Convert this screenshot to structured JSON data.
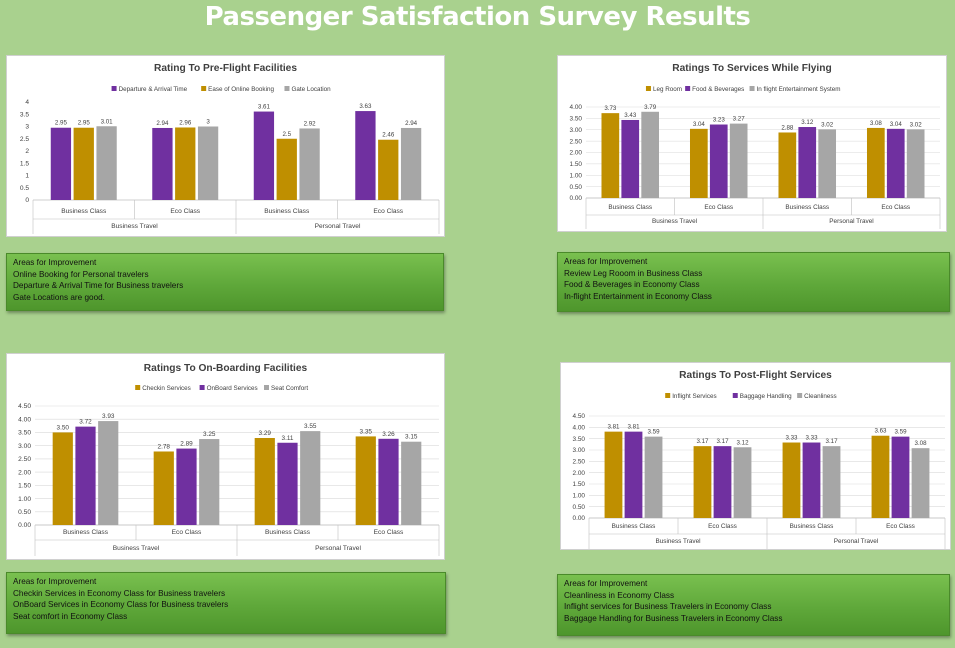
{
  "page_title": "Passenger Satisfaction Survey Results",
  "colors": {
    "purple": "#7030a0",
    "gold": "#bf8f00",
    "gray": "#a6a6a6",
    "background": "#a9d18e"
  },
  "chart_data": [
    {
      "type": "bar",
      "title": "Rating To Pre-Flight Facilities",
      "legend_position": "top",
      "value_format": "raw",
      "groups": [
        "Business Travel",
        "Personal Travel"
      ],
      "categories": [
        "Business Class",
        "Eco Class",
        "Business Class",
        "Eco Class"
      ],
      "series": [
        {
          "name": "Departure & Arrival Time",
          "color": "#7030a0",
          "values": [
            2.95,
            2.94,
            3.61,
            3.63
          ],
          "labels": [
            "2.95",
            "2.94",
            "3.61",
            "3.63"
          ]
        },
        {
          "name": "Ease of Online Booking",
          "color": "#bf8f00",
          "values": [
            2.95,
            2.96,
            2.5,
            2.46
          ],
          "labels": [
            "2.95",
            "2.96",
            "2.5",
            "2.46"
          ]
        },
        {
          "name": "Gate Location",
          "color": "#a6a6a6",
          "values": [
            3.01,
            3,
            2.92,
            2.94
          ],
          "labels": [
            "3.01",
            "3",
            "2.92",
            "2.94"
          ]
        }
      ],
      "ylim": [
        0,
        4
      ],
      "yticks": [
        "0",
        "0.5",
        "1",
        "1.5",
        "2",
        "2.5",
        "3",
        "3.5",
        "4"
      ],
      "grid": false
    },
    {
      "type": "bar",
      "title": "Ratings To Services While Flying",
      "legend_position": "top",
      "groups": [
        "Business Travel",
        "Personal Travel"
      ],
      "categories": [
        "Business Class",
        "Eco Class",
        "Business Class",
        "Eco Class"
      ],
      "series": [
        {
          "name": "Leg Room",
          "color": "#bf8f00",
          "values": [
            3.73,
            3.04,
            2.88,
            3.08
          ],
          "labels": [
            "3.73",
            "3.04",
            "2.88",
            "3.08"
          ]
        },
        {
          "name": "Food & Beverages",
          "color": "#7030a0",
          "values": [
            3.43,
            3.23,
            3.12,
            3.04
          ],
          "labels": [
            "3.43",
            "3.23",
            "3.12",
            "3.04"
          ]
        },
        {
          "name": "In flight Entertainment System",
          "color": "#a6a6a6",
          "values": [
            3.79,
            3.27,
            3.02,
            3.02
          ],
          "labels": [
            "3.79",
            "3.27",
            "3.02",
            "3.02"
          ]
        }
      ],
      "ylim": [
        0,
        4
      ],
      "yticks": [
        "0.00",
        "0.50",
        "1.00",
        "1.50",
        "2.00",
        "2.50",
        "3.00",
        "3.50",
        "4.00"
      ],
      "grid": true
    },
    {
      "type": "bar",
      "title": "Ratings To On-Boarding Facilities",
      "legend_position": "top",
      "groups": [
        "Business Travel",
        "Personal Travel"
      ],
      "categories": [
        "Business Class",
        "Eco Class",
        "Business Class",
        "Eco Class"
      ],
      "series": [
        {
          "name": "Checkin Services",
          "color": "#bf8f00",
          "values": [
            3.5,
            2.78,
            3.29,
            3.35
          ],
          "labels": [
            "3.50",
            "2.78",
            "3.29",
            "3.35"
          ]
        },
        {
          "name": "OnBoard Services",
          "color": "#7030a0",
          "values": [
            3.72,
            2.89,
            3.11,
            3.26
          ],
          "labels": [
            "3.72",
            "2.89",
            "3.11",
            "3.26"
          ]
        },
        {
          "name": "Seat Comfort",
          "color": "#a6a6a6",
          "values": [
            3.93,
            3.25,
            3.55,
            3.15
          ],
          "labels": [
            "3.93",
            "3.25",
            "3.55",
            "3.15"
          ]
        }
      ],
      "ylim": [
        0,
        4.5
      ],
      "yticks": [
        "0.00",
        "0.50",
        "1.00",
        "1.50",
        "2.00",
        "2.50",
        "3.00",
        "3.50",
        "4.00",
        "4.50"
      ],
      "grid": true
    },
    {
      "type": "bar",
      "title": "Ratings To Post-Flight Services",
      "legend_position": "top",
      "groups": [
        "Business Travel",
        "Personal Travel"
      ],
      "categories": [
        "Business Class",
        "Eco Class",
        "Business Class",
        "Eco Class"
      ],
      "series": [
        {
          "name": "Inflight Services",
          "color": "#bf8f00",
          "values": [
            3.81,
            3.17,
            3.33,
            3.63
          ],
          "labels": [
            "3.81",
            "3.17",
            "3.33",
            "3.63"
          ]
        },
        {
          "name": "Baggage Handling",
          "color": "#7030a0",
          "values": [
            3.81,
            3.17,
            3.33,
            3.59
          ],
          "labels": [
            "3.81",
            "3.17",
            "3.33",
            "3.59"
          ]
        },
        {
          "name": "Cleanliness",
          "color": "#a6a6a6",
          "values": [
            3.59,
            3.12,
            3.17,
            3.08
          ],
          "labels": [
            "3.59",
            "3.12",
            "3.17",
            "3.08"
          ]
        }
      ],
      "ylim": [
        0,
        4.5
      ],
      "yticks": [
        "0.00",
        "0.50",
        "1.00",
        "1.50",
        "2.00",
        "2.50",
        "3.00",
        "3.50",
        "4.00",
        "4.50"
      ],
      "grid": true
    }
  ],
  "notes": [
    {
      "lines": [
        "Areas for Improvement",
        "Online Booking for Personal travelers",
        "Departure & Arrival Time for Business travelers",
        "Gate Locations are good."
      ]
    },
    {
      "lines": [
        "Areas for Improvement",
        "Review Leg Rooom in Business Class",
        "Food & Beverages in Economy Class",
        "In-flight Entertainment in Economy Class"
      ]
    },
    {
      "lines": [
        "Areas for Improvement",
        "Checkin Services in Economy Class for Business travelers",
        "OnBoard Services in Economy Class for Business travelers",
        "Seat comfort in Economy Class"
      ]
    },
    {
      "lines": [
        "Areas for Improvement",
        "Cleanliness in Economy Class",
        "Inflight services for Business Travelers in Economy Class",
        "Baggage Handling for Business Travelers  in Economy Class"
      ]
    }
  ]
}
